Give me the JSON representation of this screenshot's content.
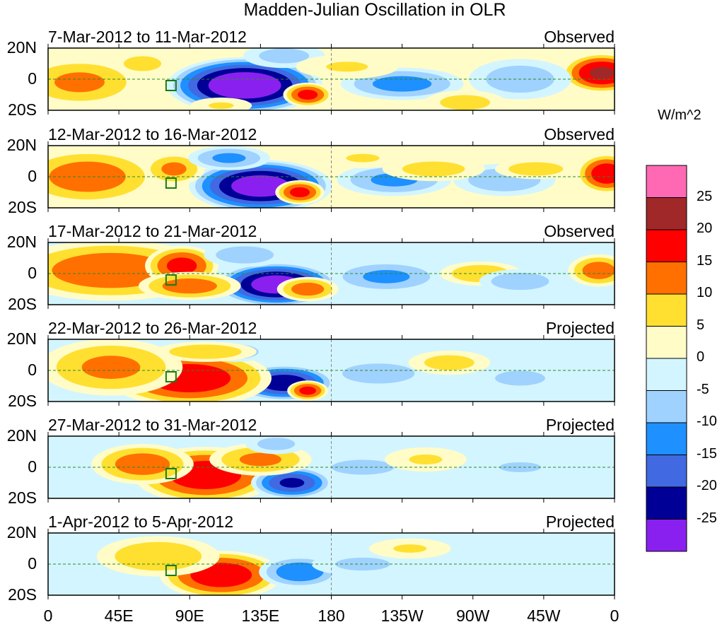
{
  "title": "Madden-Julian Oscillation in OLR",
  "units": "W/m^2",
  "chart_data": {
    "type": "heatmap",
    "x_ticks": [
      "0",
      "45E",
      "90E",
      "135E",
      "180",
      "135W",
      "90W",
      "45W",
      "0"
    ],
    "y_ticks": [
      "20N",
      "0",
      "20S"
    ],
    "lon_range": [
      0,
      360
    ],
    "lat_range": [
      -20,
      20
    ],
    "colorbar": {
      "labels": [
        "25",
        "20",
        "15",
        "10",
        "5",
        "0",
        "-5",
        "-10",
        "-15",
        "-20",
        "-25"
      ],
      "colors": [
        "#ff69b4",
        "#a02828",
        "#ff0000",
        "#ff7000",
        "#ffe030",
        "#fffcc8",
        "#d3f5ff",
        "#a0d2ff",
        "#1e90ff",
        "#4169e1",
        "#000096",
        "#8a20f0"
      ]
    },
    "panels": [
      {
        "dates": "7-Mar-2012 to 11-Mar-2012",
        "status": "Observed",
        "background": 2,
        "blobs": [
          [
            125,
            -4,
            -32,
            38,
            14
          ],
          [
            20,
            -2,
            12,
            30,
            12
          ],
          [
            352,
            4,
            22,
            20,
            10
          ],
          [
            225,
            -3,
            -13,
            30,
            8
          ],
          [
            165,
            -10,
            18,
            12,
            6
          ],
          [
            300,
            0,
            -9,
            25,
            10
          ],
          [
            60,
            10,
            8,
            15,
            6
          ],
          [
            265,
            -15,
            8,
            20,
            6
          ],
          [
            150,
            15,
            -8,
            20,
            6
          ],
          [
            190,
            8,
            6,
            25,
            6
          ],
          [
            110,
            -17,
            6,
            15,
            4
          ]
        ]
      },
      {
        "dates": "12-Mar-2012 to 16-Mar-2012",
        "status": "Observed",
        "background": 2,
        "blobs": [
          [
            135,
            -6,
            -30,
            35,
            13
          ],
          [
            25,
            0,
            14,
            35,
            14
          ],
          [
            355,
            2,
            20,
            15,
            10
          ],
          [
            220,
            -2,
            -12,
            28,
            8
          ],
          [
            160,
            -10,
            18,
            12,
            6
          ],
          [
            80,
            5,
            12,
            15,
            8
          ],
          [
            290,
            -2,
            -10,
            25,
            8
          ],
          [
            115,
            12,
            -12,
            20,
            6
          ],
          [
            245,
            5,
            8,
            25,
            6
          ],
          [
            310,
            5,
            9,
            20,
            5
          ],
          [
            200,
            12,
            6,
            20,
            5
          ]
        ]
      },
      {
        "dates": "17-Mar-2012 to 21-Mar-2012",
        "status": "Observed",
        "background": -2,
        "blobs": [
          [
            145,
            -7,
            -30,
            30,
            11
          ],
          [
            40,
            2,
            15,
            50,
            15
          ],
          [
            85,
            5,
            18,
            18,
            10
          ],
          [
            165,
            -10,
            14,
            15,
            6
          ],
          [
            215,
            -2,
            -12,
            28,
            8
          ],
          [
            275,
            0,
            10,
            20,
            6
          ],
          [
            125,
            12,
            -10,
            20,
            6
          ],
          [
            300,
            -5,
            -10,
            20,
            6
          ],
          [
            350,
            2,
            14,
            15,
            8
          ],
          [
            90,
            -8,
            14,
            25,
            7
          ]
        ]
      },
      {
        "dates": "22-Mar-2012 to 26-Mar-2012",
        "status": "Projected",
        "background": -2,
        "blobs": [
          [
            150,
            -8,
            -25,
            25,
            9
          ],
          [
            90,
            -5,
            20,
            40,
            14
          ],
          [
            40,
            2,
            12,
            35,
            14
          ],
          [
            165,
            -13,
            18,
            10,
            5
          ],
          [
            210,
            -2,
            -10,
            25,
            7
          ],
          [
            255,
            5,
            8,
            20,
            6
          ],
          [
            120,
            12,
            -10,
            15,
            5
          ],
          [
            300,
            -5,
            -8,
            20,
            6
          ],
          [
            100,
            12,
            10,
            25,
            5
          ]
        ]
      },
      {
        "dates": "27-Mar-2012 to 31-Mar-2012",
        "status": "Projected",
        "background": -2,
        "blobs": [
          [
            100,
            -5,
            20,
            35,
            14
          ],
          [
            155,
            -10,
            -22,
            20,
            8
          ],
          [
            60,
            2,
            14,
            25,
            10
          ],
          [
            135,
            5,
            12,
            25,
            8
          ],
          [
            200,
            0,
            -8,
            25,
            6
          ],
          [
            240,
            5,
            6,
            20,
            6
          ],
          [
            300,
            0,
            -6,
            25,
            6
          ],
          [
            145,
            15,
            -8,
            15,
            5
          ]
        ]
      },
      {
        "dates": "1-Apr-2012 to 5-Apr-2012",
        "status": "Projected",
        "background": -2,
        "blobs": [
          [
            110,
            -7,
            20,
            30,
            12
          ],
          [
            160,
            -5,
            -15,
            20,
            8
          ],
          [
            70,
            5,
            10,
            30,
            10
          ],
          [
            200,
            0,
            -7,
            25,
            6
          ],
          [
            230,
            10,
            6,
            20,
            5
          ],
          [
            300,
            0,
            -5,
            25,
            6
          ]
        ]
      }
    ]
  }
}
